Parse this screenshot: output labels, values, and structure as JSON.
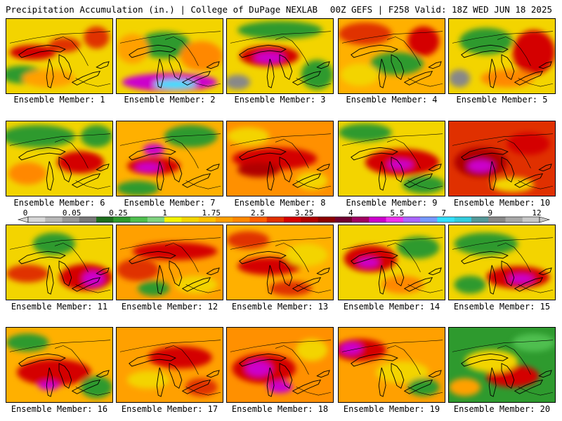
{
  "header": {
    "left": "Precipitation Accumulation (in.) | College of DuPage NEXLAB",
    "right": "00Z GEFS | F258 Valid: 18Z WED JUN 18 2025"
  },
  "member_label_prefix": "Ensemble Member: ",
  "members": [
    {
      "n": "1",
      "base": "#f3d400",
      "blobs": [
        [
          0.25,
          0.45,
          0.22,
          0.1,
          "#d40000"
        ],
        [
          0.55,
          0.35,
          0.15,
          0.1,
          "#e03000"
        ],
        [
          0.15,
          0.75,
          0.2,
          0.12,
          "#2e9a2e"
        ],
        [
          0.85,
          0.25,
          0.12,
          0.15,
          "#e03000"
        ],
        [
          0.4,
          0.8,
          0.25,
          0.12,
          "#ffa000"
        ]
      ]
    },
    {
      "n": "2",
      "base": "#f3d400",
      "blobs": [
        [
          0.5,
          0.85,
          0.45,
          0.12,
          "#cc00cc"
        ],
        [
          0.55,
          0.88,
          0.2,
          0.06,
          "#33e0ff"
        ],
        [
          0.45,
          0.35,
          0.25,
          0.18,
          "#2e9a2e"
        ],
        [
          0.8,
          0.5,
          0.2,
          0.2,
          "#ff8800"
        ],
        [
          0.15,
          0.4,
          0.15,
          0.2,
          "#ffa000"
        ]
      ]
    },
    {
      "n": "3",
      "base": "#f3d400",
      "blobs": [
        [
          0.4,
          0.5,
          0.28,
          0.14,
          "#d40000"
        ],
        [
          0.4,
          0.52,
          0.14,
          0.07,
          "#cc00cc"
        ],
        [
          0.5,
          0.15,
          0.4,
          0.12,
          "#2e9a2e"
        ],
        [
          0.85,
          0.75,
          0.15,
          0.2,
          "#2e9a2e"
        ],
        [
          0.1,
          0.85,
          0.12,
          0.1,
          "#888888"
        ]
      ]
    },
    {
      "n": "4",
      "base": "#ffb000",
      "blobs": [
        [
          0.25,
          0.2,
          0.25,
          0.15,
          "#e03000"
        ],
        [
          0.55,
          0.6,
          0.25,
          0.15,
          "#2e9a2e"
        ],
        [
          0.8,
          0.3,
          0.15,
          0.2,
          "#d40000"
        ],
        [
          0.2,
          0.75,
          0.18,
          0.15,
          "#f3d400"
        ]
      ]
    },
    {
      "n": "5",
      "base": "#f3d400",
      "blobs": [
        [
          0.8,
          0.45,
          0.2,
          0.3,
          "#d40000"
        ],
        [
          0.35,
          0.3,
          0.25,
          0.18,
          "#2e9a2e"
        ],
        [
          0.1,
          0.8,
          0.1,
          0.12,
          "#888888"
        ],
        [
          0.55,
          0.8,
          0.25,
          0.12,
          "#ff8800"
        ]
      ]
    },
    {
      "n": "6",
      "base": "#f3d400",
      "blobs": [
        [
          0.3,
          0.2,
          0.35,
          0.15,
          "#2e9a2e"
        ],
        [
          0.7,
          0.55,
          0.22,
          0.15,
          "#d40000"
        ],
        [
          0.2,
          0.7,
          0.18,
          0.15,
          "#ff8800"
        ],
        [
          0.85,
          0.2,
          0.15,
          0.15,
          "#2e9a2e"
        ]
      ]
    },
    {
      "n": "7",
      "base": "#ffb000",
      "blobs": [
        [
          0.35,
          0.6,
          0.25,
          0.12,
          "#d40000"
        ],
        [
          0.3,
          0.62,
          0.12,
          0.06,
          "#cc00cc"
        ],
        [
          0.35,
          0.38,
          0.1,
          0.08,
          "#cc00cc"
        ],
        [
          0.7,
          0.2,
          0.25,
          0.15,
          "#2e9a2e"
        ],
        [
          0.2,
          0.9,
          0.2,
          0.1,
          "#2e9a2e"
        ]
      ]
    },
    {
      "n": "8",
      "base": "#ff9000",
      "blobs": [
        [
          0.45,
          0.5,
          0.4,
          0.15,
          "#d40000"
        ],
        [
          0.3,
          0.65,
          0.2,
          0.1,
          "#b00000"
        ],
        [
          0.2,
          0.2,
          0.2,
          0.12,
          "#f3d400"
        ],
        [
          0.8,
          0.8,
          0.15,
          0.12,
          "#f3d400"
        ]
      ]
    },
    {
      "n": "9",
      "base": "#f3d400",
      "blobs": [
        [
          0.6,
          0.55,
          0.35,
          0.18,
          "#d40000"
        ],
        [
          0.58,
          0.58,
          0.12,
          0.06,
          "#cc00cc"
        ],
        [
          0.25,
          0.15,
          0.25,
          0.12,
          "#2e9a2e"
        ],
        [
          0.8,
          0.85,
          0.2,
          0.12,
          "#2e9a2e"
        ]
      ]
    },
    {
      "n": "10",
      "base": "#e03000",
      "blobs": [
        [
          0.3,
          0.55,
          0.25,
          0.2,
          "#b00000"
        ],
        [
          0.3,
          0.6,
          0.12,
          0.08,
          "#cc00cc"
        ],
        [
          0.75,
          0.3,
          0.2,
          0.15,
          "#d40000"
        ],
        [
          0.6,
          0.85,
          0.2,
          0.1,
          "#f3d400"
        ]
      ]
    },
    {
      "n": "11",
      "base": "#f3d400",
      "blobs": [
        [
          0.75,
          0.7,
          0.25,
          0.18,
          "#d40000"
        ],
        [
          0.82,
          0.72,
          0.1,
          0.1,
          "#cc00cc"
        ],
        [
          0.2,
          0.65,
          0.2,
          0.12,
          "#e03000"
        ],
        [
          0.45,
          0.25,
          0.2,
          0.15,
          "#2e9a2e"
        ]
      ]
    },
    {
      "n": "12",
      "base": "#ffa000",
      "blobs": [
        [
          0.55,
          0.35,
          0.4,
          0.12,
          "#d40000"
        ],
        [
          0.2,
          0.6,
          0.2,
          0.15,
          "#e03000"
        ],
        [
          0.75,
          0.8,
          0.2,
          0.12,
          "#f3d400"
        ],
        [
          0.35,
          0.85,
          0.15,
          0.1,
          "#2e9a2e"
        ]
      ]
    },
    {
      "n": "13",
      "base": "#ffb000",
      "blobs": [
        [
          0.4,
          0.55,
          0.3,
          0.12,
          "#d40000"
        ],
        [
          0.2,
          0.2,
          0.2,
          0.12,
          "#e03000"
        ],
        [
          0.75,
          0.4,
          0.2,
          0.15,
          "#f3d400"
        ],
        [
          0.6,
          0.85,
          0.2,
          0.1,
          "#e03000"
        ]
      ]
    },
    {
      "n": "14",
      "base": "#f3d400",
      "blobs": [
        [
          0.3,
          0.45,
          0.25,
          0.18,
          "#d40000"
        ],
        [
          0.28,
          0.5,
          0.1,
          0.06,
          "#cc00cc"
        ],
        [
          0.75,
          0.3,
          0.2,
          0.15,
          "#2e9a2e"
        ],
        [
          0.6,
          0.8,
          0.2,
          0.12,
          "#ff8800"
        ]
      ]
    },
    {
      "n": "15",
      "base": "#f3d400",
      "blobs": [
        [
          0.65,
          0.7,
          0.3,
          0.15,
          "#d40000"
        ],
        [
          0.68,
          0.72,
          0.12,
          0.06,
          "#cc00cc"
        ],
        [
          0.35,
          0.25,
          0.3,
          0.15,
          "#2e9a2e"
        ],
        [
          0.2,
          0.8,
          0.15,
          0.12,
          "#2e9a2e"
        ]
      ]
    },
    {
      "n": "16",
      "base": "#ffb000",
      "blobs": [
        [
          0.45,
          0.6,
          0.35,
          0.18,
          "#d40000"
        ],
        [
          0.4,
          0.78,
          0.1,
          0.06,
          "#cc00cc"
        ],
        [
          0.2,
          0.2,
          0.2,
          0.12,
          "#2e9a2e"
        ],
        [
          0.85,
          0.8,
          0.15,
          0.15,
          "#2e9a2e"
        ]
      ]
    },
    {
      "n": "17",
      "base": "#ffa000",
      "blobs": [
        [
          0.6,
          0.4,
          0.3,
          0.15,
          "#d40000"
        ],
        [
          0.3,
          0.7,
          0.2,
          0.12,
          "#f3d400"
        ],
        [
          0.8,
          0.8,
          0.15,
          0.12,
          "#e03000"
        ]
      ]
    },
    {
      "n": "18",
      "base": "#ff9000",
      "blobs": [
        [
          0.35,
          0.55,
          0.3,
          0.2,
          "#d40000"
        ],
        [
          0.3,
          0.55,
          0.12,
          0.1,
          "#cc00cc"
        ],
        [
          0.5,
          0.8,
          0.12,
          0.08,
          "#cc00cc"
        ],
        [
          0.8,
          0.3,
          0.15,
          0.15,
          "#f3d400"
        ]
      ]
    },
    {
      "n": "19",
      "base": "#ffa000",
      "blobs": [
        [
          0.2,
          0.3,
          0.25,
          0.15,
          "#d40000"
        ],
        [
          0.12,
          0.28,
          0.1,
          0.08,
          "#cc00cc"
        ],
        [
          0.6,
          0.6,
          0.25,
          0.15,
          "#f3d400"
        ],
        [
          0.8,
          0.8,
          0.15,
          0.12,
          "#2e9a2e"
        ]
      ]
    },
    {
      "n": "20",
      "base": "#2e9a2e",
      "blobs": [
        [
          0.6,
          0.65,
          0.25,
          0.15,
          "#d40000"
        ],
        [
          0.4,
          0.45,
          0.25,
          0.15,
          "#f3d400"
        ],
        [
          0.15,
          0.8,
          0.15,
          0.12,
          "#ffa000"
        ],
        [
          0.8,
          0.2,
          0.2,
          0.12,
          "#4fbf4f"
        ]
      ]
    }
  ],
  "colorbar": {
    "labels": [
      "0",
      "0.05",
      "0.25",
      "1",
      "1.75",
      "2.5",
      "3.25",
      "4",
      "5.5",
      "7",
      "9",
      "12"
    ],
    "colors": [
      "#d8d8d8",
      "#b8b8b8",
      "#989898",
      "#787878",
      "#1e6e1e",
      "#2e9a2e",
      "#4fbf4f",
      "#7fd27f",
      "#f3f300",
      "#f3d400",
      "#ffc000",
      "#ffa000",
      "#ff8800",
      "#ff6000",
      "#e03000",
      "#d40000",
      "#b00000",
      "#8c0000",
      "#700030",
      "#a00060",
      "#cc00cc",
      "#ee33ee",
      "#aa66ff",
      "#7799ff",
      "#33e0ff",
      "#33ccdd",
      "#559999",
      "#888888",
      "#a8a8a8",
      "#c8c8c8"
    ]
  }
}
